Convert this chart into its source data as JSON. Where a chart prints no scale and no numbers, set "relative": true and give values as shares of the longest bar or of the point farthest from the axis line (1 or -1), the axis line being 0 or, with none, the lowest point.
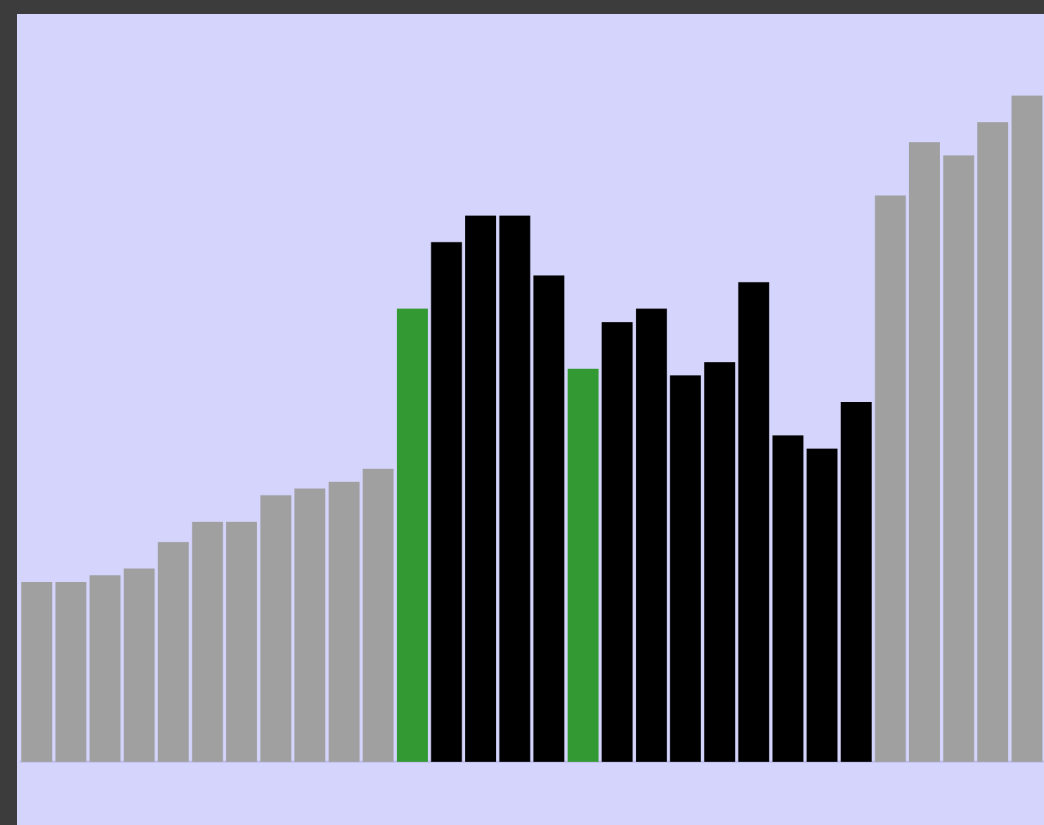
{
  "chart_data": {
    "type": "bar",
    "relative": true,
    "categories": [
      null,
      null,
      null,
      null,
      null,
      null,
      null,
      null,
      null,
      null,
      null,
      null,
      null,
      null,
      null,
      null,
      null,
      null,
      null,
      null,
      null,
      null,
      null,
      null,
      null,
      null,
      null,
      null,
      null,
      null
    ],
    "values": [
      0.27,
      0.27,
      0.28,
      0.29,
      0.33,
      0.36,
      0.36,
      0.4,
      0.41,
      0.42,
      0.44,
      0.68,
      0.78,
      0.82,
      0.82,
      0.73,
      0.59,
      0.66,
      0.68,
      0.58,
      0.6,
      0.72,
      0.49,
      0.47,
      0.54,
      0.85,
      0.93,
      0.91,
      0.96,
      1
    ],
    "colors": [
      "#a0a0a0",
      "#a0a0a0",
      "#a0a0a0",
      "#a0a0a0",
      "#a0a0a0",
      "#a0a0a0",
      "#a0a0a0",
      "#a0a0a0",
      "#a0a0a0",
      "#a0a0a0",
      "#a0a0a0",
      "#339933",
      "#000000",
      "#000000",
      "#000000",
      "#000000",
      "#339933",
      "#000000",
      "#000000",
      "#000000",
      "#000000",
      "#000000",
      "#000000",
      "#000000",
      "#000000",
      "#a0a0a0",
      "#a0a0a0",
      "#a0a0a0",
      "#a0a0a0",
      "#a0a0a0"
    ]
  }
}
